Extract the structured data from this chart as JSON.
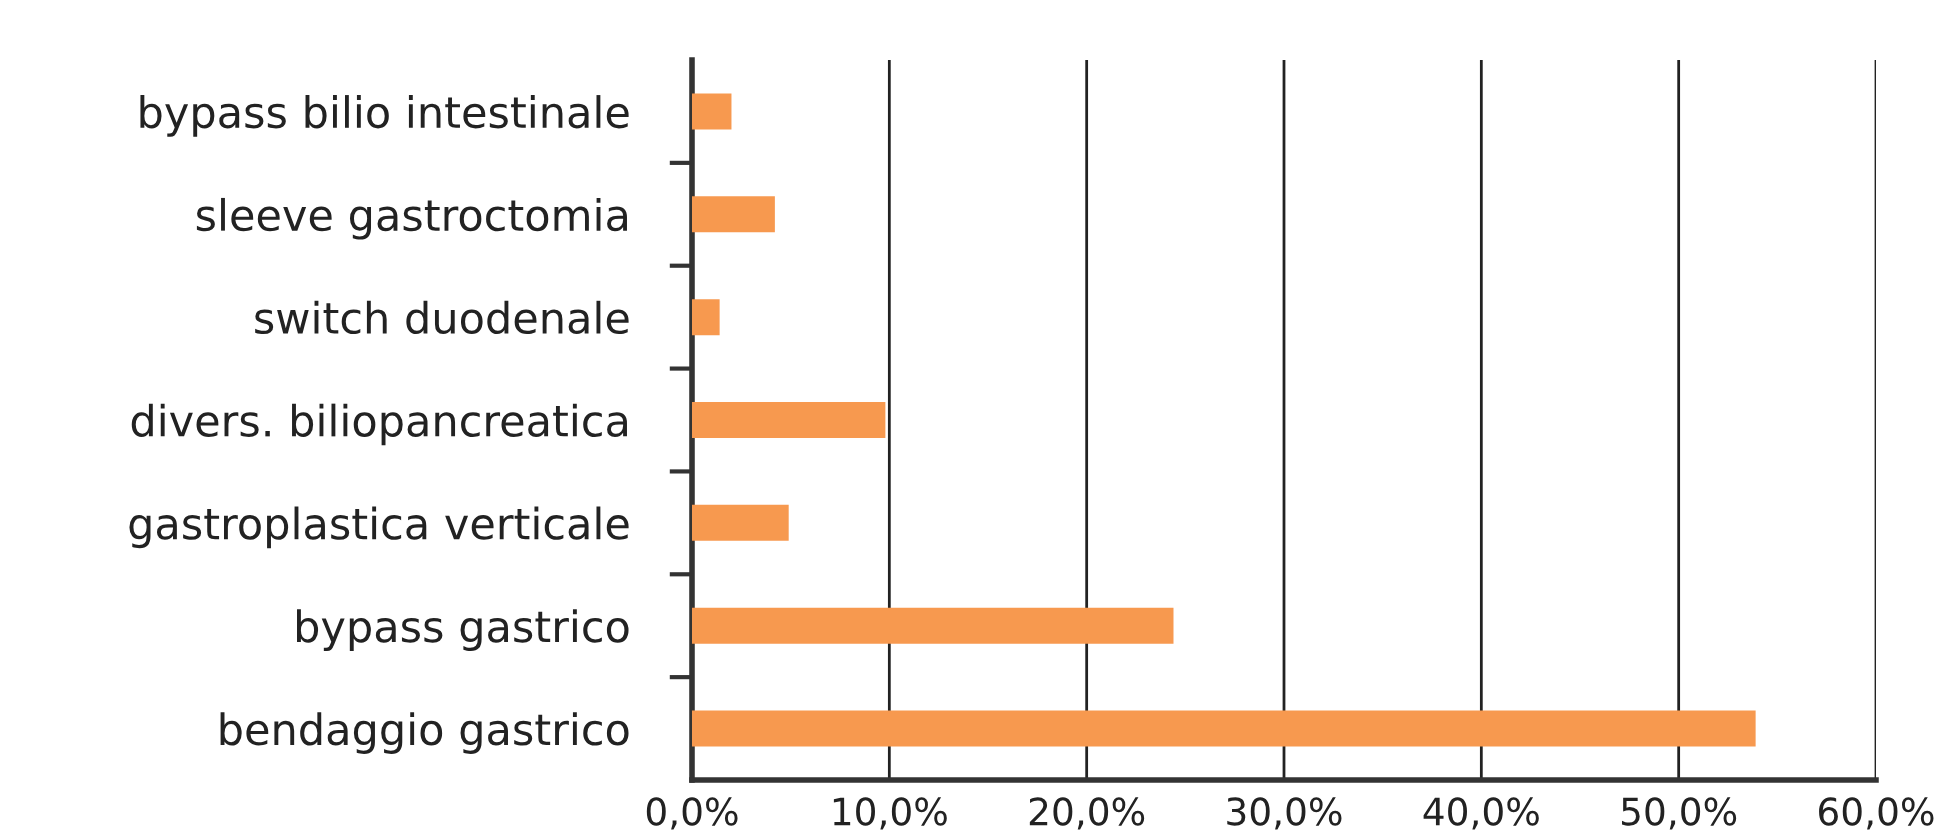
{
  "chart_data": {
    "type": "bar",
    "orientation": "horizontal",
    "categories": [
      "bypass bilio intestinale",
      "sleeve gastroctomia",
      "switch duodenale",
      "divers. biliopancreatica",
      "gastroplastica verticale",
      "bypass gastrico",
      "bendaggio gastrico"
    ],
    "values": [
      2.0,
      4.2,
      1.4,
      9.8,
      4.9,
      24.4,
      53.9
    ],
    "color": "#f7994f",
    "xlim": [
      0,
      60
    ],
    "xticks": [
      {
        "value": 0,
        "label": "0,0%"
      },
      {
        "value": 10,
        "label": "10,0%"
      },
      {
        "value": 20,
        "label": "20,0%"
      },
      {
        "value": 30,
        "label": "30,0%"
      },
      {
        "value": 40,
        "label": "40,0%"
      },
      {
        "value": 50,
        "label": "50,0%"
      },
      {
        "value": 60,
        "label": "60,0%"
      }
    ],
    "grid": "x"
  }
}
